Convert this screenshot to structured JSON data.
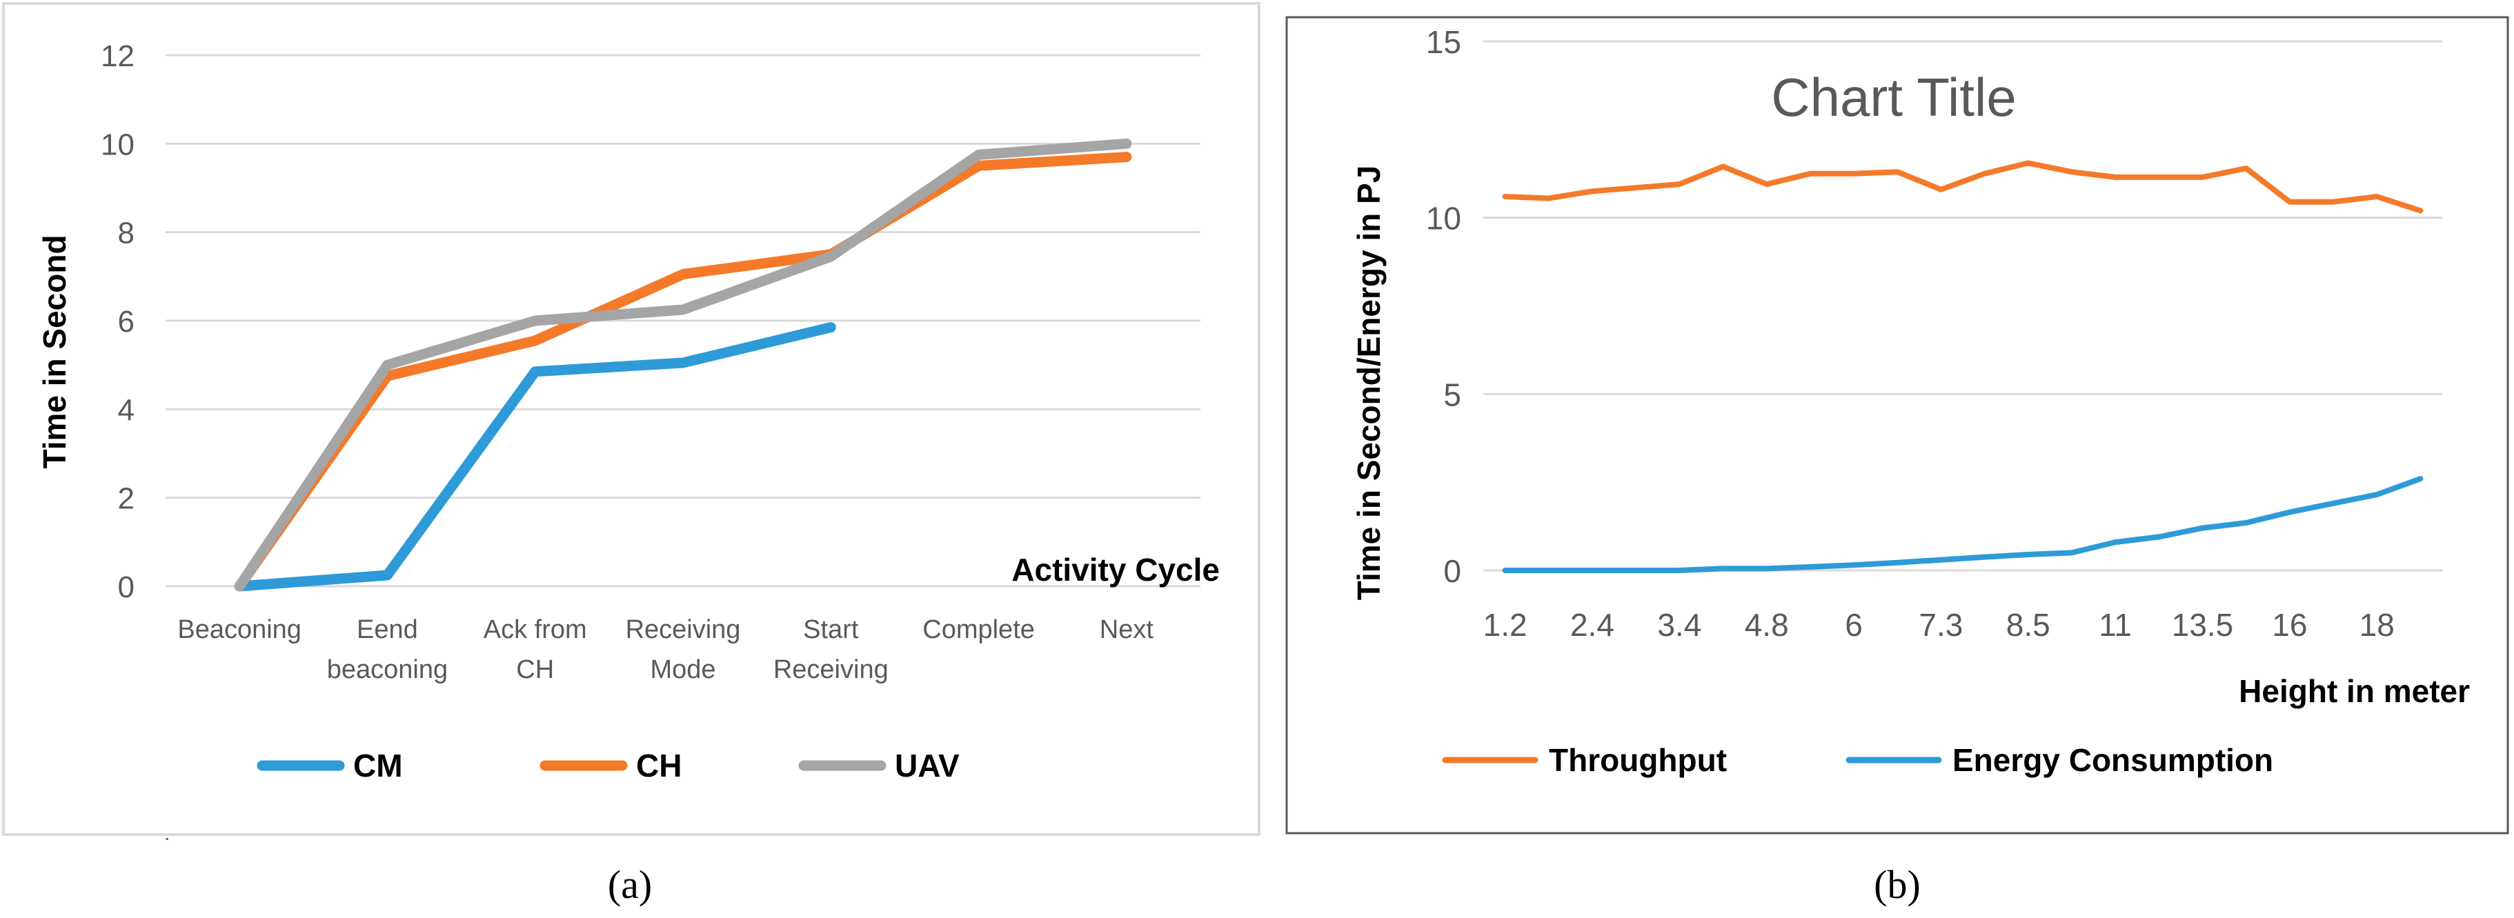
{
  "chart_data": [
    {
      "type": "line",
      "panel": "a",
      "title": "",
      "xlabel": "Activity Cycle",
      "ylabel": "Time in Second",
      "ylim": [
        0,
        12
      ],
      "yticks": [
        0,
        2,
        4,
        6,
        8,
        10,
        12
      ],
      "categories": [
        [
          "Beaconing"
        ],
        [
          "Eend",
          "beaconing"
        ],
        [
          "Ack from",
          "CH"
        ],
        [
          "Receiving",
          "Mode"
        ],
        [
          "Start",
          "Receiving"
        ],
        [
          "Complete"
        ],
        [
          "Next"
        ]
      ],
      "grid": true,
      "legend": "bottom",
      "series": [
        {
          "name": "CM",
          "color": "#2e9ad8",
          "values": [
            0,
            0.25,
            4.85,
            5.05,
            5.85,
            null,
            null
          ]
        },
        {
          "name": "CH",
          "color": "#f47a2a",
          "values": [
            0,
            4.75,
            5.55,
            7.05,
            7.5,
            9.5,
            9.7
          ]
        },
        {
          "name": "UAV",
          "color": "#a5a5a5",
          "values": [
            0,
            5.0,
            6.0,
            6.25,
            7.45,
            9.75,
            10.0
          ]
        }
      ]
    },
    {
      "type": "line",
      "panel": "b",
      "title": "Chart Title",
      "xlabel": "Height in meter",
      "ylabel": "Time in Second/Energy in PJ",
      "ylim": [
        0,
        15
      ],
      "yticks": [
        0,
        5,
        10,
        15
      ],
      "x_tick_labels": [
        "1.2",
        "2.4",
        "3.4",
        "4.8",
        "6",
        "7.3",
        "8.5",
        "11",
        "13.5",
        "16",
        "18"
      ],
      "grid": true,
      "legend": "bottom",
      "series": [
        {
          "name": "Throughput",
          "color": "#f47a2a",
          "values": [
            10.6,
            10.55,
            10.75,
            10.85,
            10.95,
            11.45,
            10.95,
            11.25,
            11.25,
            11.3,
            10.8,
            11.25,
            11.55,
            11.3,
            11.15,
            11.15,
            11.15,
            11.4,
            10.45,
            10.45,
            10.6,
            10.2
          ]
        },
        {
          "name": "Energy Consumption",
          "color": "#2e9ad8",
          "values": [
            0,
            0,
            0,
            0,
            0,
            0.05,
            0.05,
            0.1,
            0.15,
            0.22,
            0.3,
            0.38,
            0.45,
            0.5,
            0.8,
            0.95,
            1.2,
            1.35,
            1.65,
            1.9,
            2.15,
            2.6
          ]
        }
      ]
    }
  ],
  "captions": [
    "(a)",
    "(b)"
  ],
  "stray_mark": "."
}
